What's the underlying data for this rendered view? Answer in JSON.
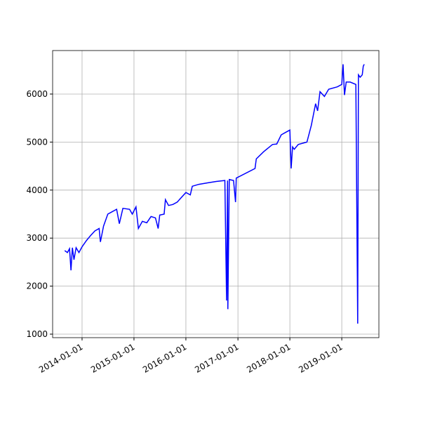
{
  "chart_data": {
    "type": "line",
    "color": "#0000ff",
    "grid": true,
    "x": [
      "2013-09-01",
      "2013-09-20",
      "2013-10-05",
      "2013-10-15",
      "2013-10-25",
      "2013-11-05",
      "2013-11-20",
      "2013-12-10",
      "2014-01-01",
      "2014-02-01",
      "2014-03-01",
      "2014-04-01",
      "2014-05-01",
      "2014-05-10",
      "2014-06-01",
      "2014-07-01",
      "2014-08-01",
      "2014-09-01",
      "2014-09-20",
      "2014-10-15",
      "2014-12-01",
      "2014-12-20",
      "2015-01-15",
      "2015-02-01",
      "2015-03-01",
      "2015-04-01",
      "2015-05-01",
      "2015-06-01",
      "2015-06-20",
      "2015-07-01",
      "2015-08-01",
      "2015-08-10",
      "2015-09-01",
      "2015-10-01",
      "2015-11-01",
      "2016-01-01",
      "2016-02-01",
      "2016-02-15",
      "2016-04-01",
      "2016-06-01",
      "2016-08-01",
      "2016-10-01",
      "2016-10-13",
      "2016-10-20",
      "2016-10-22",
      "2016-11-01",
      "2016-12-01",
      "2016-12-15",
      "2016-12-20",
      "2017-05-01",
      "2017-05-10",
      "2017-07-01",
      "2017-09-01",
      "2017-10-01",
      "2017-11-01",
      "2017-12-01",
      "2018-01-01",
      "2018-01-10",
      "2018-01-20",
      "2018-02-01",
      "2018-03-01",
      "2018-05-01",
      "2018-06-01",
      "2018-07-01",
      "2018-07-15",
      "2018-08-01",
      "2018-09-01",
      "2018-10-01",
      "2018-12-01",
      "2019-01-01",
      "2019-01-10",
      "2019-01-20",
      "2019-02-01",
      "2019-03-01",
      "2019-04-10",
      "2019-04-23",
      "2019-04-28",
      "2019-05-10",
      "2019-05-25",
      "2019-06-01",
      "2019-06-08"
    ],
    "values": [
      2740,
      2700,
      2780,
      2330,
      2800,
      2550,
      2800,
      2700,
      2820,
      2950,
      3050,
      3150,
      3200,
      2920,
      3250,
      3500,
      3550,
      3600,
      3300,
      3620,
      3600,
      3500,
      3650,
      3200,
      3350,
      3320,
      3450,
      3420,
      3200,
      3480,
      3500,
      3800,
      3680,
      3700,
      3750,
      3950,
      3900,
      4080,
      4120,
      4150,
      4180,
      4200,
      1700,
      4200,
      1520,
      4220,
      4200,
      3750,
      4250,
      4450,
      4650,
      4800,
      4950,
      4960,
      5150,
      5200,
      5250,
      4450,
      4900,
      4850,
      4950,
      5000,
      5350,
      5800,
      5650,
      6050,
      5950,
      6100,
      6150,
      6200,
      6620,
      5980,
      6250,
      6250,
      6200,
      1220,
      6400,
      6350,
      6400,
      6580,
      6620
    ],
    "xlim": [
      "2013-06-08",
      "2019-09-19"
    ],
    "xticks": [
      "2014-01-01",
      "2015-01-01",
      "2016-01-01",
      "2017-01-01",
      "2018-01-01",
      "2019-01-01"
    ],
    "ylim": [
      927,
      6906
    ],
    "yticks": [
      1000,
      2000,
      3000,
      4000,
      5000,
      6000
    ]
  }
}
